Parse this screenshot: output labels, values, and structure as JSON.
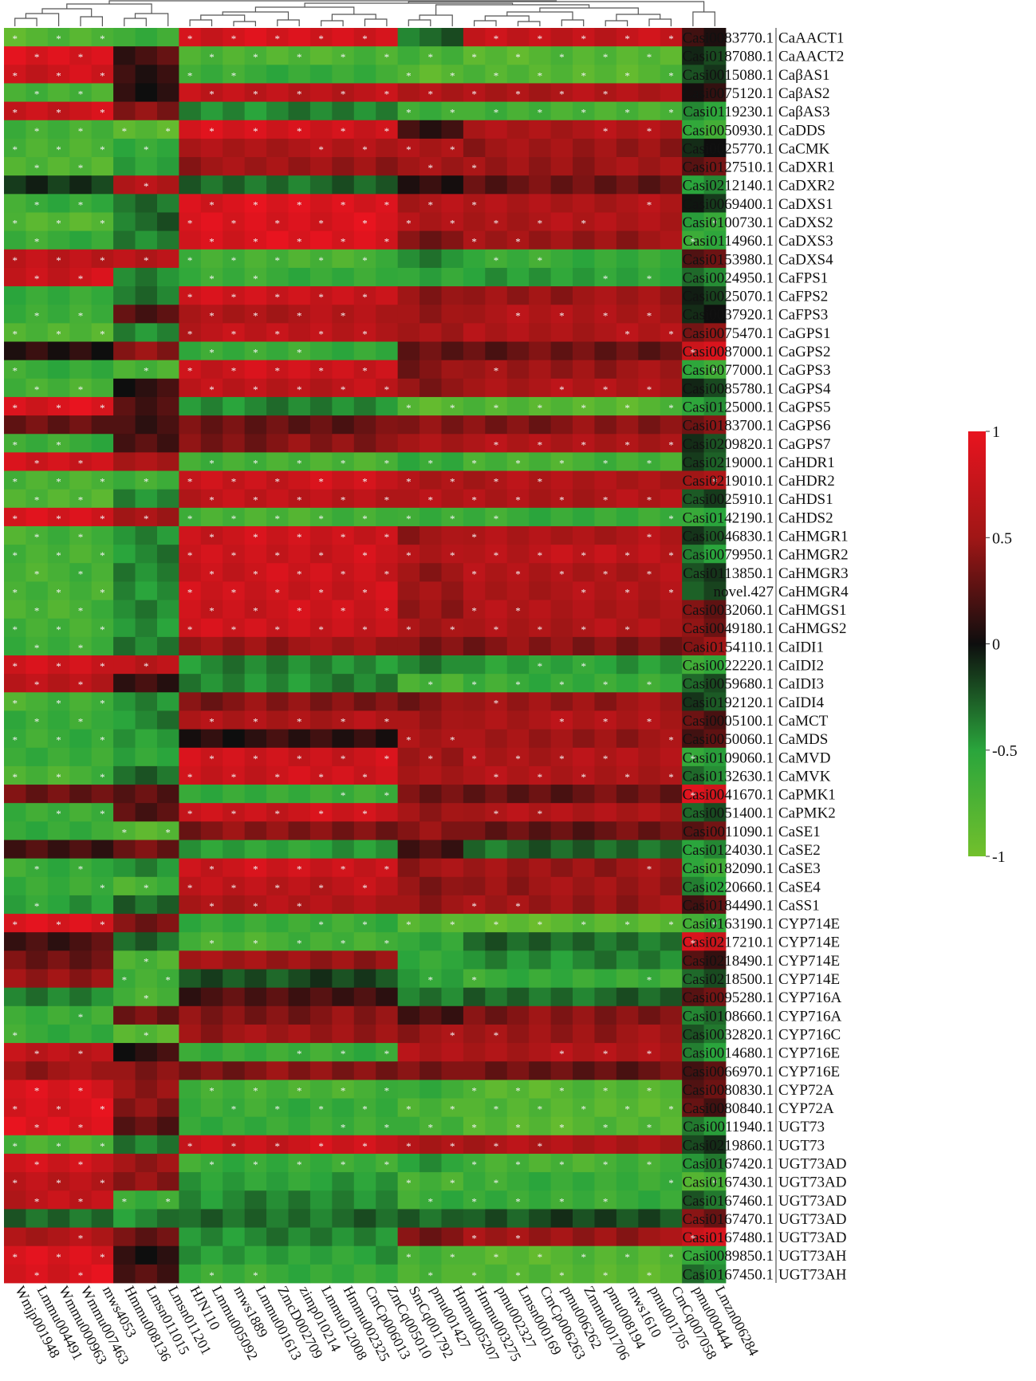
{
  "chart_data": {
    "type": "heatmap",
    "title": "",
    "rows": [
      "Casi0083770.1|CaAACT1",
      "Casi0187080.1|CaAACT2",
      "Casi0015080.1|CaβAS1",
      "Casi0075120.1|CaβAS2",
      "Casi0119230.1|CaβAS3",
      "Casi0050930.1|CaDDS",
      "Casi0025770.1|CaCMK",
      "Casi0127510.1|CaDXR1",
      "Casi0212140.1|CaDXR2",
      "Casi0069400.1|CaDXS1",
      "Casi0100730.1|CaDXS2",
      "Casi0114960.1|CaDXS3",
      "Casi0153980.1|CaDXS4",
      "Casi0024950.1|CaFPS1",
      "Casi0025070.1|CaFPS2",
      "Casi0037920.1|CaFPS3",
      "Casi0075470.1|CaGPS1",
      "Casi0087000.1|CaGPS2",
      "Casi0077000.1|CaGPS3",
      "Casi0085780.1|CaGPS4",
      "Casi0125000.1|CaGPS5",
      "Casi0183700.1|CaGPS6",
      "Casi0209820.1|CaGPS7",
      "Casi0219000.1|CaHDR1",
      "Casi0219010.1|CaHDR2",
      "Casi0025910.1|CaHDS1",
      "Casi0142190.1|CaHDS2",
      "Casi0046830.1|CaHMGR1",
      "Casi0079950.1|CaHMGR2",
      "Casi0113850.1|CaHMGR3",
      "novel.427|CaHMGR4",
      "Casi0032060.1|CaHMGS1",
      "Casi0049180.1|CaHMGS2",
      "Casi0154110.1|CaIDI1",
      "Casi0022220.1|CaIDI2",
      "Casi0059680.1|CaIDI3",
      "Casi0192120.1|CaIDI4",
      "Casi0005100.1|CaMCT",
      "Casi0050060.1|CaMDS",
      "Casi0109060.1|CaMVD",
      "Casi0132630.1|CaMVK",
      "Casi0041670.1|CaPMK1",
      "Casi0051400.1|CaPMK2",
      "Casi0011090.1|CaSE1",
      "Casi0124030.1|CaSE2",
      "Casi0182090.1|CaSE3",
      "Casi0220660.1|CaSE4",
      "Casi0184490.1|CaSS1",
      "Casi0163190.1|CYP714E",
      "Casi0217210.1|CYP714E",
      "Casi0218490.1|CYP714E",
      "Casi0218500.1|CYP714E",
      "Casi0095280.1|CYP716A",
      "Casi0108660.1|CYP716A",
      "Casi0032820.1|CYP716C",
      "Casi0014680.1|CYP716E",
      "Casi0066970.1|CYP716E",
      "Casi0080830.1|CYP72A",
      "Casi0080840.1|CYP72A",
      "Casi0011940.1|UGT73",
      "Casi0219860.1|UGT73",
      "Casi0167420.1|UGT73AD",
      "Casi0167430.1|UGT73AD",
      "Casi0167460.1|UGT73AD",
      "Casi0167470.1|UGT73AD",
      "Casi0167480.1|UGT73AD",
      "Casi0089850.1|UGT73AH",
      "Casi0167450.1|UGT73AH"
    ],
    "columns": [
      "Wmjp001948",
      "Lmmu004491",
      "Wmmu000963",
      "Wmmu007463",
      "mws4053",
      "Hmmu008136",
      "Lmsn011015",
      "Lmsn011201",
      "HJN110",
      "Lmmu005092",
      "mws1889",
      "Lmmu001613",
      "ZmcD002709",
      "zimp010214",
      "Lmmu012008",
      "Hmmu002325",
      "CmCp006013",
      "ZmCq005010",
      "SmCq001792",
      "pmu001427",
      "Hmmu005207",
      "Hmmu003275",
      "pmu002327",
      "Lmsn000169",
      "CmCp006263",
      "pmu006262",
      "Zmmu001706",
      "pmu008194",
      "mws1610",
      "pmu001705",
      "CmCq007058",
      "pmu000444",
      "Lmzn006284"
    ],
    "color_scale": {
      "min": -1,
      "mid": 0,
      "max": 1,
      "ticks": [
        "1",
        "0.5",
        "0",
        "-0.5",
        "-1"
      ],
      "colors": [
        "#72c02c",
        "#2aa53c",
        "#0e0e0e",
        "#a01616",
        "#e8141f"
      ]
    },
    "star_marker": "*",
    "column_blocks": [
      {
        "columns": [
          0,
          5
        ],
        "pattern": "A"
      },
      {
        "columns": [
          5,
          8
        ],
        "pattern": "B"
      },
      {
        "columns": [
          8,
          18
        ],
        "pattern": "C"
      },
      {
        "columns": [
          18,
          21
        ],
        "pattern": "D"
      },
      {
        "columns": [
          21,
          31
        ],
        "pattern": "E"
      },
      {
        "columns": [
          31,
          33
        ],
        "pattern": "F"
      }
    ],
    "row_pattern_values": {
      "A": [
        -0.8,
        0.9,
        0.8,
        -0.7,
        0.8,
        -0.7,
        -0.7,
        -0.8,
        -0.1,
        -0.6,
        -0.8,
        -0.6,
        0.7,
        0.8,
        -0.6,
        -0.6,
        -0.8,
        0.1,
        -0.6,
        -0.7,
        0.9,
        0.3,
        -0.6,
        0.8,
        -0.7,
        -0.8,
        0.9,
        -0.7,
        -0.7,
        -0.7,
        -0.7,
        -0.7,
        -0.7,
        -0.6,
        0.8,
        0.7,
        -0.7,
        -0.6,
        -0.6,
        -0.6,
        -0.7,
        0.3,
        -0.6,
        -0.6,
        0.2,
        -0.6,
        -0.6,
        -0.5,
        0.9,
        0.2,
        0.3,
        0.5,
        -0.4,
        -0.6,
        -0.6,
        0.7,
        0.5,
        0.9,
        0.9,
        0.9,
        -0.7,
        0.8,
        0.7,
        0.7,
        -0.3,
        0.6,
        0.9,
        0.9
      ],
      "B": [
        -0.6,
        0.2,
        0.1,
        0.1,
        0.4,
        -0.8,
        -0.6,
        -0.5,
        0.6,
        -0.3,
        -0.3,
        -0.4,
        0.7,
        -0.4,
        -0.3,
        0.2,
        -0.4,
        0.4,
        -0.7,
        0.1,
        0.2,
        0.2,
        0.2,
        0.6,
        -0.7,
        -0.4,
        0.5,
        -0.4,
        -0.4,
        -0.4,
        -0.4,
        -0.4,
        -0.4,
        -0.4,
        0.7,
        0.1,
        -0.4,
        -0.4,
        -0.5,
        -0.5,
        -0.3,
        0.3,
        0.2,
        -0.8,
        0.3,
        -0.4,
        -0.7,
        -0.3,
        0.4,
        -0.3,
        -0.7,
        -0.7,
        -0.7,
        0.3,
        -0.8,
        0.1,
        0.4,
        0.5,
        0.4,
        0.3,
        -0.4,
        0.5,
        0.4,
        -0.6,
        -0.4,
        0.3,
        0.1,
        0.2
      ],
      "C": [
        0.85,
        -0.75,
        -0.6,
        0.7,
        -0.4,
        0.85,
        0.6,
        0.5,
        -0.3,
        0.9,
        0.9,
        0.9,
        -0.7,
        -0.6,
        0.8,
        0.6,
        0.7,
        -0.6,
        0.8,
        0.7,
        -0.4,
        0.3,
        0.4,
        -0.7,
        0.8,
        0.7,
        -0.7,
        0.8,
        0.8,
        0.8,
        0.8,
        0.8,
        0.8,
        0.5,
        -0.4,
        -0.4,
        0.4,
        0.6,
        0.1,
        0.8,
        0.8,
        -0.6,
        0.8,
        0.4,
        -0.5,
        0.8,
        0.7,
        0.6,
        -0.6,
        -0.7,
        0.5,
        -0.2,
        0.2,
        0.4,
        0.5,
        -0.6,
        0.4,
        -0.7,
        -0.6,
        -0.6,
        0.8,
        -0.6,
        -0.5,
        -0.4,
        -0.3,
        -0.4,
        -0.5,
        -0.6
      ],
      "D": [
        -0.3,
        -0.7,
        -0.8,
        0.6,
        -0.6,
        0.1,
        0.6,
        0.5,
        0.1,
        0.6,
        0.6,
        0.4,
        -0.4,
        -0.5,
        0.4,
        0.5,
        0.5,
        0.3,
        0.4,
        0.4,
        -0.8,
        0.4,
        0.6,
        -0.6,
        0.6,
        0.6,
        -0.6,
        0.5,
        0.6,
        0.5,
        0.5,
        0.5,
        0.5,
        0.4,
        -0.4,
        -0.7,
        0.4,
        0.5,
        0.6,
        0.5,
        0.6,
        0.3,
        0.5,
        0.4,
        0.2,
        0.5,
        0.4,
        0.5,
        -0.8,
        -0.5,
        -0.6,
        -0.5,
        -0.4,
        0.2,
        0.5,
        0.6,
        0.4,
        -0.6,
        -0.7,
        -0.7,
        0.6,
        -0.5,
        -0.7,
        -0.6,
        -0.3,
        0.4,
        -0.7,
        -0.7
      ],
      "E": [
        0.75,
        -0.8,
        -0.8,
        0.6,
        -0.7,
        0.6,
        0.5,
        0.5,
        0.3,
        0.6,
        0.6,
        0.5,
        -0.6,
        -0.5,
        0.5,
        0.6,
        0.6,
        0.3,
        0.5,
        0.6,
        -0.8,
        0.4,
        0.6,
        -0.7,
        0.6,
        0.6,
        -0.6,
        0.6,
        0.7,
        0.6,
        0.6,
        0.6,
        0.6,
        0.4,
        -0.5,
        -0.6,
        0.5,
        0.6,
        0.5,
        0.6,
        0.6,
        0.3,
        0.6,
        0.3,
        -0.3,
        0.5,
        0.5,
        0.5,
        -0.85,
        -0.3,
        -0.4,
        -0.6,
        -0.3,
        0.4,
        0.5,
        0.6,
        0.3,
        -0.8,
        -0.8,
        -0.8,
        0.6,
        -0.7,
        -0.6,
        -0.6,
        -0.2,
        0.5,
        -0.8,
        -0.8
      ],
      "F": [
        0.1,
        -0.1,
        -0.2,
        0.1,
        -0.5,
        -0.6,
        -0.1,
        0.3,
        -0.4,
        -0.1,
        -0.5,
        -0.6,
        0.3,
        -0.4,
        -0.1,
        -0.1,
        0.4,
        0.9,
        -0.6,
        -0.1,
        -0.5,
        0.4,
        -0.2,
        -0.2,
        0.5,
        -0.2,
        -0.5,
        -0.2,
        -0.4,
        -0.2,
        -0.2,
        0.3,
        0.4,
        0.4,
        -0.6,
        -0.2,
        -0.2,
        0.3,
        0.2,
        -0.5,
        -0.4,
        0.9,
        -0.3,
        0.3,
        -0.4,
        -0.6,
        -0.4,
        0.2,
        -0.6,
        0.8,
        0.2,
        -0.3,
        0.3,
        -0.3,
        -0.3,
        -0.4,
        0.2,
        0.3,
        0.2,
        -0.4,
        -0.2,
        -0.4,
        -0.7,
        -0.3,
        0.4,
        0.8,
        -0.5,
        -0.4
      ]
    }
  }
}
